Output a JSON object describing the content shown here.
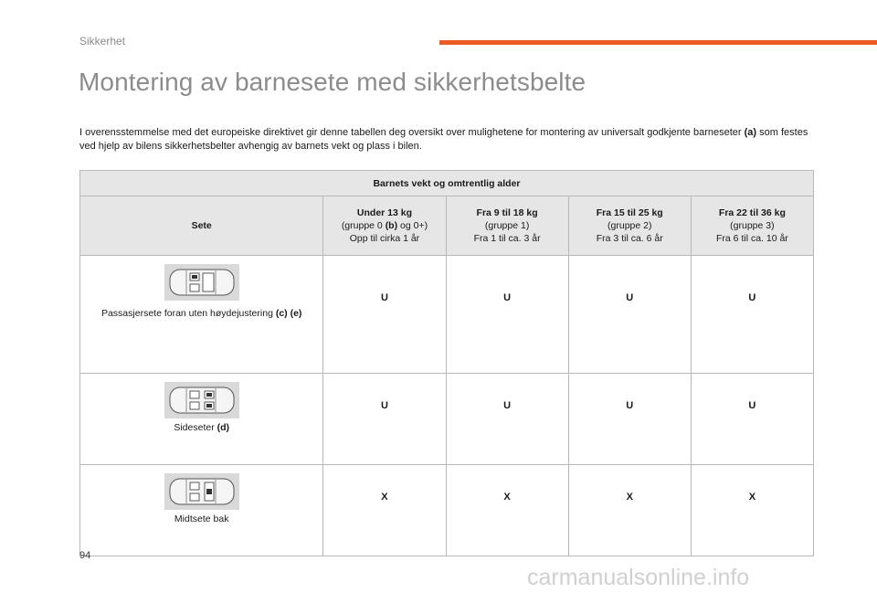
{
  "header": {
    "section": "Sikkerhet",
    "accent_color": "#ee5a24"
  },
  "title": "Montering av barnesete med sikkerhetsbelte",
  "intro": {
    "text_before": "I overensstemmelse med det europeiske direktivet gir denne tabellen deg oversikt over mulighetene for montering av universalt godkjente barneseter ",
    "ref": "(a)",
    "text_after": " som festes ved hjelp av bilens sikkerhetsbelter avhengig av barnets vekt og plass i bilen."
  },
  "table": {
    "group_header": "Barnets vekt og omtrentlig alder",
    "seat_header": "Sete",
    "columns": [
      {
        "weight": "Under 13 kg",
        "group_pre": "(gruppe 0 ",
        "group_ref": "(b)",
        "group_post": " og 0+)",
        "age": "Opp til cirka 1 år"
      },
      {
        "weight": "Fra 9 til 18 kg",
        "group": "(gruppe 1)",
        "age": "Fra 1 til ca. 3 år"
      },
      {
        "weight": "Fra 15 til 25 kg",
        "group": "(gruppe 2)",
        "age": "Fra 3 til ca. 6 år"
      },
      {
        "weight": "Fra 22 til 36 kg",
        "group": "(gruppe 3)",
        "age": "Fra 6 til ca. 10 år"
      }
    ],
    "rows": [
      {
        "icon": "car-front-passenger-seat-icon",
        "label": "Passasjersete foran uten høydejustering ",
        "refs": "(c) (e)",
        "values": [
          "U",
          "U",
          "U",
          "U"
        ]
      },
      {
        "icon": "car-rear-side-seats-icon",
        "label": "Sideseter ",
        "refs": "(d)",
        "values": [
          "U",
          "U",
          "U",
          "U"
        ]
      },
      {
        "icon": "car-rear-middle-seat-icon",
        "label": "Midtsete bak",
        "refs": "",
        "values": [
          "X",
          "X",
          "X",
          "X"
        ]
      }
    ]
  },
  "footer": {
    "page_number": "94",
    "watermark": "carmanualsonline.info"
  }
}
